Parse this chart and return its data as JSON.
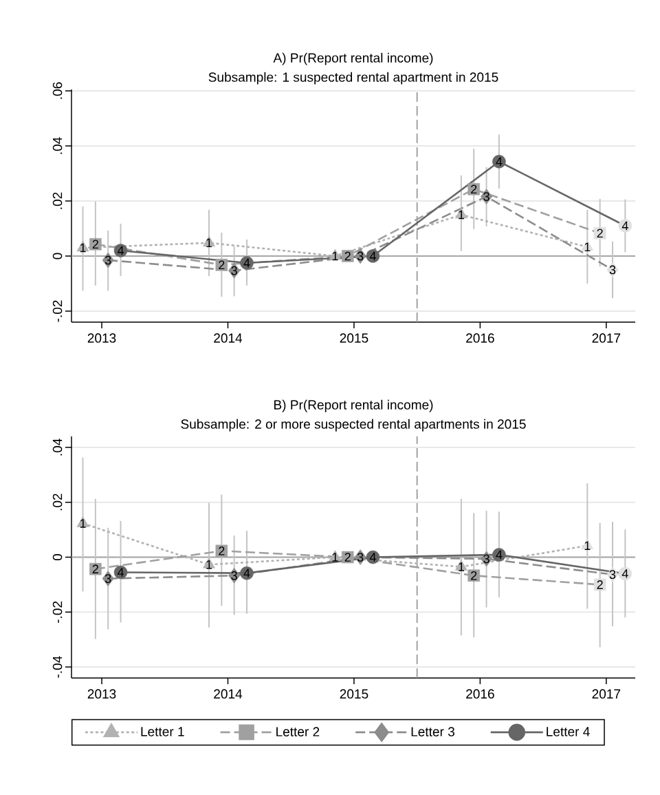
{
  "chart_data": [
    {
      "type": "line",
      "title": "A) Pr(Report rental income)",
      "subtitle": "Subsample: 1 suspected rental apartment in 2015",
      "xlim": [
        2012.76,
        2017.23
      ],
      "xticks": [
        2013,
        2014,
        2015,
        2016,
        2017
      ],
      "ylim": [
        -0.024,
        0.0605
      ],
      "yticks": [
        {
          "value": -0.02,
          "label": "-.02"
        },
        {
          "value": 0,
          "label": "0"
        },
        {
          "value": 0.02,
          "label": ".02"
        },
        {
          "value": 0.04,
          "label": ".04"
        },
        {
          "value": 0.06,
          "label": ".06"
        }
      ],
      "grid": "y",
      "ref_lines": [
        {
          "axis": "x",
          "value": 2015.5,
          "color": "#999999",
          "line_style": "dashed"
        },
        {
          "axis": "y",
          "value": 0,
          "color": "#a6a6a6",
          "line_style": "solid"
        }
      ],
      "series": [
        {
          "color": "#b2b2b2",
          "marker": "triangle",
          "line_style": "dotted",
          "x": [
            2012.85,
            2013.85,
            2014.85,
            2015.85,
            2016.85
          ],
          "values": [
            0.003,
            0.0048,
            0,
            0.015,
            0.0033
          ],
          "errors": [
            [
              -0.0126,
              0.018
            ],
            [
              -0.0073,
              0.0168
            ],
            null,
            [
              0.0018,
              0.0293
            ],
            [
              -0.01,
              0.0168
            ]
          ],
          "colors": [
            "#b2b2b2",
            "#b2b2b2",
            "#b2b2b2",
            "#b8b8b8",
            "#e0e0e0"
          ]
        },
        {
          "color": "#a0a0a0",
          "marker": "square",
          "line_style": "dashed",
          "x": [
            2012.95,
            2013.95,
            2014.95,
            2015.95,
            2016.95
          ],
          "values": [
            0.0043,
            -0.0032,
            0,
            0.0243,
            0.0083
          ],
          "errors": [
            [
              -0.0107,
              0.0198
            ],
            [
              -0.0148,
              0.0085
            ],
            null,
            [
              0.0098,
              0.039
            ],
            [
              -0.0038,
              0.0208
            ]
          ],
          "colors": [
            "#a0a0a0",
            "#a0a0a0",
            "#a0a0a0",
            "#a0a0a0",
            "#e0e0e0"
          ]
        },
        {
          "color": "#8c8c8c",
          "marker": "diamond",
          "line_style": "dashed",
          "x": [
            2013.05,
            2014.05,
            2015.05,
            2016.05,
            2017.05
          ],
          "values": [
            -0.0015,
            -0.0053,
            0,
            0.0216,
            -0.005
          ],
          "errors": [
            [
              -0.0126,
              0.0093
            ],
            [
              -0.0146,
              0.0035
            ],
            null,
            [
              0.0108,
              0.0323
            ],
            [
              -0.0153,
              0.0053
            ]
          ],
          "colors": [
            "#8c8c8c",
            "#8c8c8c",
            "#8c8c8c",
            "#8c8c8c",
            "#e0e0e0"
          ]
        },
        {
          "color": "#666666",
          "marker": "circle",
          "line_style": "solid",
          "x": [
            2013.15,
            2014.15,
            2015.15,
            2016.15,
            2017.15
          ],
          "values": [
            0.002,
            -0.0025,
            0,
            0.0343,
            0.011
          ],
          "errors": [
            [
              -0.0073,
              0.0117
            ],
            [
              -0.0107,
              0.006
            ],
            null,
            [
              0.0245,
              0.0441
            ],
            [
              0.0014,
              0.0206
            ]
          ],
          "colors": [
            "#666666",
            "#666666",
            "#666666",
            "#666666",
            "#e0e0e0"
          ]
        }
      ],
      "annotations": [
        {
          "text": "1",
          "x": 2012.85,
          "y": 0.003
        },
        {
          "text": "1",
          "x": 2013.85,
          "y": 0.0048
        },
        {
          "text": "1",
          "x": 2014.85,
          "y": 0
        },
        {
          "text": "1",
          "x": 2015.85,
          "y": 0.015
        },
        {
          "text": "1",
          "x": 2016.85,
          "y": 0.0033
        },
        {
          "text": "2",
          "x": 2012.95,
          "y": 0.0043
        },
        {
          "text": "2",
          "x": 2013.95,
          "y": -0.0032
        },
        {
          "text": "2",
          "x": 2014.95,
          "y": 0
        },
        {
          "text": "2",
          "x": 2015.95,
          "y": 0.0243
        },
        {
          "text": "2",
          "x": 2016.95,
          "y": 0.0083
        },
        {
          "text": "3",
          "x": 2013.05,
          "y": -0.0015
        },
        {
          "text": "3",
          "x": 2014.05,
          "y": -0.0053
        },
        {
          "text": "3",
          "x": 2015.05,
          "y": 0
        },
        {
          "text": "3",
          "x": 2016.05,
          "y": 0.0216
        },
        {
          "text": "3",
          "x": 2017.05,
          "y": -0.005
        },
        {
          "text": "4",
          "x": 2013.15,
          "y": 0.002
        },
        {
          "text": "4",
          "x": 2014.15,
          "y": -0.0025
        },
        {
          "text": "4",
          "x": 2015.15,
          "y": 0
        },
        {
          "text": "4",
          "x": 2016.15,
          "y": 0.0343
        },
        {
          "text": "4",
          "x": 2017.15,
          "y": 0.011
        }
      ]
    },
    {
      "type": "line",
      "title": "B) Pr(Report rental income)",
      "subtitle": "Subsample: 2 or more suspected rental apartments in 2015",
      "xlim": [
        2012.76,
        2017.23
      ],
      "xticks": [
        2013,
        2014,
        2015,
        2016,
        2017
      ],
      "ylim": [
        -0.044,
        0.044
      ],
      "yticks": [
        {
          "value": -0.04,
          "label": "-.04"
        },
        {
          "value": -0.02,
          "label": "-.02"
        },
        {
          "value": 0,
          "label": "0"
        },
        {
          "value": 0.02,
          "label": ".02"
        },
        {
          "value": 0.04,
          "label": ".04"
        }
      ],
      "grid": "y",
      "legend": "bottom",
      "ref_lines": [
        {
          "axis": "x",
          "value": 2015.5,
          "color": "#999999",
          "line_style": "dashed"
        },
        {
          "axis": "y",
          "value": 0,
          "color": "#a6a6a6",
          "line_style": "solid"
        }
      ],
      "series": [
        {
          "name": "Letter 1",
          "color": "#b2b2b2",
          "marker": "triangle",
          "line_style": "dotted",
          "x": [
            2012.85,
            2013.85,
            2014.85,
            2015.85,
            2016.85
          ],
          "values": [
            0.0123,
            -0.0027,
            0,
            -0.0035,
            0.0042
          ],
          "errors": [
            [
              -0.0125,
              0.0363
            ],
            [
              -0.0256,
              0.0198
            ],
            null,
            [
              -0.0285,
              0.0213
            ],
            [
              -0.0188,
              0.0269
            ]
          ],
          "colors": [
            "#b2b2b2",
            "#b2b2b2",
            "#b2b2b2",
            "#b2b2b2",
            "#e0e0e0"
          ]
        },
        {
          "name": "Letter 2",
          "color": "#a0a0a0",
          "marker": "square",
          "line_style": "dashed",
          "x": [
            2012.95,
            2013.95,
            2014.95,
            2015.95,
            2016.95
          ],
          "values": [
            -0.0043,
            0.0023,
            0,
            -0.0067,
            -0.01
          ],
          "errors": [
            [
              -0.0298,
              0.0213
            ],
            [
              -0.0177,
              0.0228
            ],
            null,
            [
              -0.0292,
              0.0161
            ],
            [
              -0.0328,
              0.0125
            ]
          ],
          "colors": [
            "#a0a0a0",
            "#a0a0a0",
            "#a0a0a0",
            "#a0a0a0",
            "#e0e0e0"
          ]
        },
        {
          "name": "Letter 3",
          "color": "#8c8c8c",
          "marker": "diamond",
          "line_style": "dashed",
          "x": [
            2013.05,
            2014.05,
            2015.05,
            2016.05,
            2017.05
          ],
          "values": [
            -0.0078,
            -0.0067,
            0,
            -0.0006,
            -0.0063
          ],
          "errors": [
            [
              -0.0263,
              0.0107
            ],
            [
              -0.021,
              0.0079
            ],
            null,
            [
              -0.0183,
              0.0169
            ],
            [
              -0.0252,
              0.0129
            ]
          ],
          "colors": [
            "#8c8c8c",
            "#8c8c8c",
            "#8c8c8c",
            "#8c8c8c",
            "#e0e0e0"
          ]
        },
        {
          "name": "Letter 4",
          "color": "#666666",
          "marker": "circle",
          "line_style": "solid",
          "x": [
            2013.15,
            2014.15,
            2015.15,
            2016.15,
            2017.15
          ],
          "values": [
            -0.0055,
            -0.0058,
            0,
            0.0009,
            -0.006
          ],
          "errors": [
            [
              -0.0238,
              0.0132
            ],
            [
              -0.0206,
              0.0096
            ],
            null,
            [
              -0.0146,
              0.0166
            ],
            [
              -0.022,
              0.0101
            ]
          ],
          "colors": [
            "#666666",
            "#666666",
            "#666666",
            "#666666",
            "#e0e0e0"
          ]
        }
      ],
      "annotations": [
        {
          "text": "1",
          "x": 2012.85,
          "y": 0.0123
        },
        {
          "text": "1",
          "x": 2013.85,
          "y": -0.0027
        },
        {
          "text": "1",
          "x": 2014.85,
          "y": 0
        },
        {
          "text": "1",
          "x": 2015.85,
          "y": -0.0035
        },
        {
          "text": "1",
          "x": 2016.85,
          "y": 0.0042
        },
        {
          "text": "2",
          "x": 2012.95,
          "y": -0.0043
        },
        {
          "text": "2",
          "x": 2013.95,
          "y": 0.0023
        },
        {
          "text": "2",
          "x": 2014.95,
          "y": 0
        },
        {
          "text": "2",
          "x": 2015.95,
          "y": -0.0067
        },
        {
          "text": "2",
          "x": 2016.95,
          "y": -0.01
        },
        {
          "text": "3",
          "x": 2013.05,
          "y": -0.0078
        },
        {
          "text": "3",
          "x": 2014.05,
          "y": -0.0067
        },
        {
          "text": "3",
          "x": 2015.05,
          "y": 0
        },
        {
          "text": "3",
          "x": 2016.05,
          "y": -0.0006
        },
        {
          "text": "3",
          "x": 2017.05,
          "y": -0.0063
        },
        {
          "text": "4",
          "x": 2013.15,
          "y": -0.0055
        },
        {
          "text": "4",
          "x": 2014.15,
          "y": -0.0058
        },
        {
          "text": "4",
          "x": 2015.15,
          "y": 0
        },
        {
          "text": "4",
          "x": 2016.15,
          "y": 0.0009
        },
        {
          "text": "4",
          "x": 2017.15,
          "y": -0.006
        }
      ]
    }
  ]
}
